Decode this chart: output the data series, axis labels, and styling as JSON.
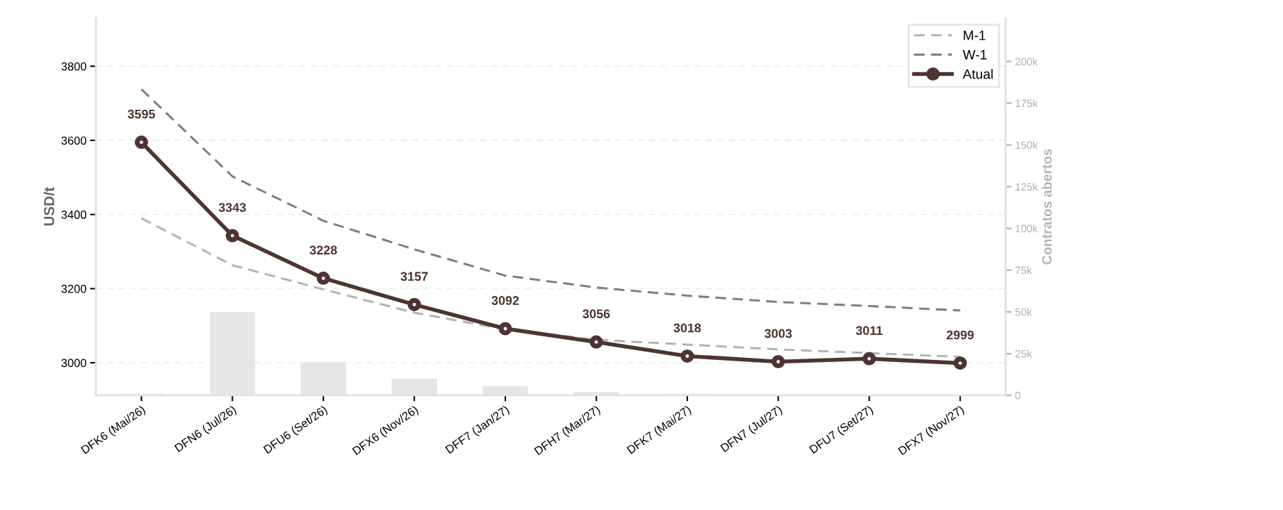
{
  "chart_data": {
    "type": "line",
    "ylabel": "USD/t",
    "y2label": "Contratos abertos",
    "categories": [
      "DFK6 (Mai/26)",
      "DFN6 (Jul/26)",
      "DFU6 (Set/26)",
      "DFX6 (Nov/26)",
      "DFF7 (Jan/27)",
      "DFH7 (Mar/27)",
      "DFK7 (Mai/27)",
      "DFN7 (Jul/27)",
      "DFU7 (Set/27)",
      "DFX7 (Nov/27)"
    ],
    "series": [
      {
        "type": "bar",
        "axis": "y2",
        "color": "#e6e6e6",
        "values": [
          1000,
          50000,
          20000,
          10000,
          5500,
          2000,
          1000,
          0,
          0,
          0
        ]
      },
      {
        "name": "M-1",
        "color": "#b3b3b3",
        "line_style": "dashed",
        "marker": "none",
        "values": [
          3390,
          3263,
          3198,
          3135,
          3090,
          3062,
          3049,
          3036,
          3026,
          3016
        ]
      },
      {
        "name": "W-1",
        "color": "#7f7f7f",
        "line_style": "dashed",
        "marker": "none",
        "values": [
          3738,
          3503,
          3383,
          3306,
          3235,
          3203,
          3181,
          3164,
          3153,
          3141
        ]
      },
      {
        "name": "Atual",
        "color": "#4e3430",
        "line_style": "solid",
        "marker": "circle",
        "data_labels": true,
        "values": [
          3595,
          3343,
          3228,
          3157,
          3092,
          3056,
          3018,
          3003,
          3011,
          2999
        ]
      }
    ],
    "ylim": [
      2912,
      3930
    ],
    "yticks": [
      3000,
      3200,
      3400,
      3600,
      3800
    ],
    "y2lim": [
      0,
      226000
    ],
    "y2ticks": [
      0,
      {
        "value": 25000,
        "label": "25k"
      },
      {
        "value": 50000,
        "label": "50k"
      },
      {
        "value": 75000,
        "label": "75k"
      },
      {
        "value": 100000,
        "label": "100k"
      },
      {
        "value": 125000,
        "label": "125k"
      },
      {
        "value": 150000,
        "label": "150k"
      },
      {
        "value": 175000,
        "label": "175k"
      },
      {
        "value": 200000,
        "label": "200k"
      }
    ],
    "grid": "y",
    "legend": "top right"
  }
}
